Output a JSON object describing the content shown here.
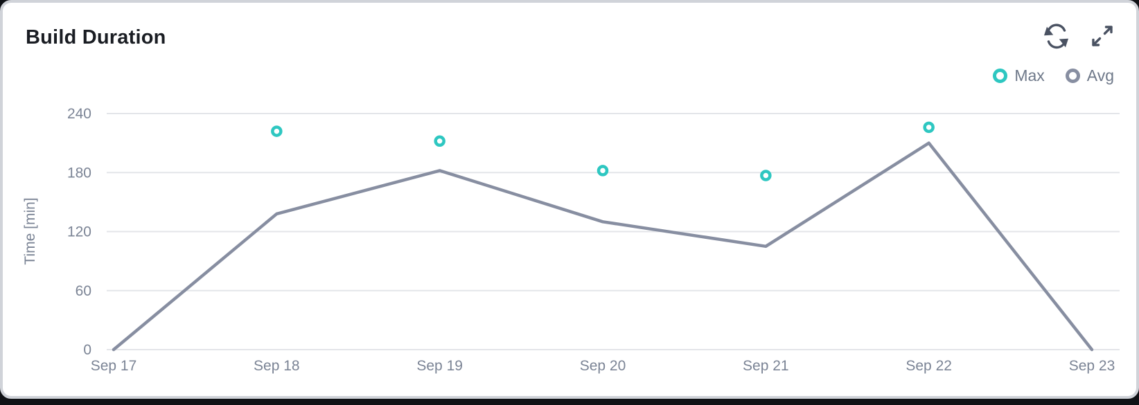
{
  "card": {
    "title": "Build Duration"
  },
  "toolbar": {
    "refresh_icon": "refresh",
    "expand_icon": "expand"
  },
  "legend": {
    "items": [
      {
        "label": "Max",
        "color": "#2ec7c1"
      },
      {
        "label": "Avg",
        "color": "#878ea1"
      }
    ]
  },
  "chart_data": {
    "type": "line",
    "title": "Build Duration",
    "categories": [
      "Sep 17",
      "Sep 18",
      "Sep 19",
      "Sep 20",
      "Sep 21",
      "Sep 22",
      "Sep 23"
    ],
    "series": [
      {
        "name": "Max",
        "type": "scatter",
        "color": "#2ec7c1",
        "values": [
          null,
          222,
          212,
          182,
          177,
          226,
          null
        ]
      },
      {
        "name": "Avg",
        "type": "line",
        "color": "#878ea1",
        "values": [
          0,
          138,
          182,
          130,
          105,
          210,
          0
        ]
      }
    ],
    "xlabel": "",
    "ylabel": "Time [min]",
    "ylim": [
      0,
      240
    ],
    "yticks": [
      0,
      60,
      120,
      180,
      240
    ],
    "grid": "horizontal",
    "legend_position": "top-right"
  },
  "colors": {
    "card_background": "#ffffff",
    "card_border": "#d0d3d9",
    "title_text": "#1a1d23",
    "icon": "#4a5262",
    "legend_text": "#6e7889",
    "tick_text": "#7b8495",
    "gridline": "#e3e5e9",
    "avg_line": "#878ea1",
    "max_marker": "#2ec7c1"
  }
}
